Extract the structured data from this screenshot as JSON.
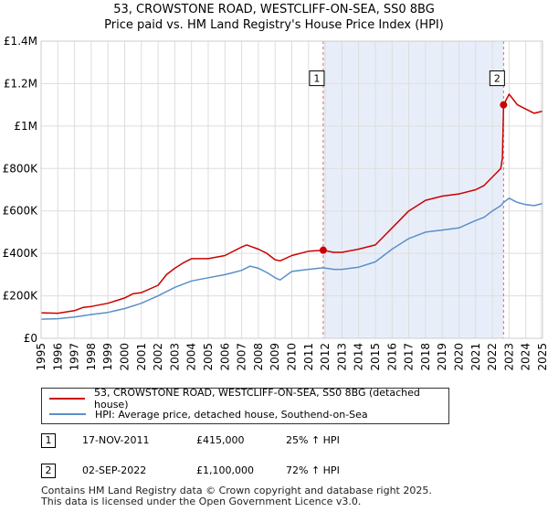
{
  "chart_data": {
    "type": "line",
    "title": "53, CROWSTONE ROAD, WESTCLIFF-ON-SEA, SS0 8BG",
    "subtitle": "Price paid vs. HM Land Registry's House Price Index (HPI)",
    "xlabel": "",
    "ylabel": "",
    "xlim": [
      1995,
      2025
    ],
    "ylim": [
      0,
      1400000
    ],
    "grid": true,
    "ytick_values": [
      0,
      200000,
      400000,
      600000,
      800000,
      1000000,
      1200000,
      1400000
    ],
    "ytick_labels": [
      "£0",
      "£200K",
      "£400K",
      "£600K",
      "£800K",
      "£1M",
      "£1.2M",
      "£1.4M"
    ],
    "xtick_values": [
      1995,
      1996,
      1997,
      1998,
      1999,
      2000,
      2001,
      2002,
      2003,
      2004,
      2005,
      2006,
      2007,
      2008,
      2009,
      2010,
      2011,
      2012,
      2013,
      2014,
      2015,
      2016,
      2017,
      2018,
      2019,
      2020,
      2021,
      2022,
      2023,
      2024,
      2025
    ],
    "xtick_labels": [
      "1995",
      "1996",
      "1997",
      "1998",
      "1999",
      "2000",
      "2001",
      "2002",
      "2003",
      "2004",
      "2005",
      "2006",
      "2007",
      "2008",
      "2009",
      "2010",
      "2011",
      "2012",
      "2013",
      "2014",
      "2015",
      "2016",
      "2017",
      "2018",
      "2019",
      "2020",
      "2021",
      "2022",
      "2023",
      "2024",
      "2025"
    ],
    "shaded_region": [
      2011.88,
      2022.67
    ],
    "series": [
      {
        "name": "53, CROWSTONE ROAD, WESTCLIFF-ON-SEA, SS0 8BG (detached house)",
        "color": "#cc0000",
        "x": [
          1995.0,
          1996.0,
          1997.0,
          1997.5,
          1998.0,
          1999.0,
          2000.0,
          2000.5,
          2001.0,
          2002.0,
          2002.5,
          2003.0,
          2003.5,
          2004.0,
          2005.0,
          2006.0,
          2007.0,
          2007.3,
          2008.0,
          2008.5,
          2009.0,
          2009.3,
          2010.0,
          2011.0,
          2011.88,
          2012.5,
          2013.0,
          2014.0,
          2015.0,
          2016.0,
          2017.0,
          2018.0,
          2019.0,
          2020.0,
          2021.0,
          2021.5,
          2022.0,
          2022.5,
          2022.6,
          2022.67,
          2023.0,
          2023.5,
          2024.0,
          2024.5,
          2025.0
        ],
        "y": [
          120000,
          118000,
          130000,
          145000,
          150000,
          165000,
          190000,
          210000,
          215000,
          250000,
          300000,
          330000,
          355000,
          375000,
          375000,
          390000,
          430000,
          440000,
          420000,
          400000,
          370000,
          365000,
          390000,
          410000,
          415000,
          405000,
          405000,
          420000,
          440000,
          520000,
          600000,
          650000,
          670000,
          680000,
          700000,
          720000,
          760000,
          800000,
          850000,
          1100000,
          1150000,
          1100000,
          1080000,
          1060000,
          1070000
        ]
      },
      {
        "name": "HPI: Average price, detached house, Southend-on-Sea",
        "color": "#5b8fc9",
        "x": [
          1995.0,
          1996.0,
          1997.0,
          1998.0,
          1999.0,
          2000.0,
          2001.0,
          2002.0,
          2003.0,
          2004.0,
          2005.0,
          2006.0,
          2007.0,
          2007.5,
          2008.0,
          2008.5,
          2009.0,
          2009.3,
          2010.0,
          2011.0,
          2011.88,
          2012.5,
          2013.0,
          2014.0,
          2015.0,
          2016.0,
          2017.0,
          2018.0,
          2019.0,
          2020.0,
          2021.0,
          2021.5,
          2022.0,
          2022.5,
          2022.67,
          2023.0,
          2023.5,
          2024.0,
          2024.5,
          2025.0
        ],
        "y": [
          90000,
          92000,
          100000,
          112000,
          122000,
          140000,
          165000,
          200000,
          240000,
          270000,
          285000,
          300000,
          320000,
          340000,
          330000,
          310000,
          285000,
          275000,
          315000,
          325000,
          332000,
          325000,
          325000,
          335000,
          360000,
          420000,
          470000,
          500000,
          510000,
          520000,
          555000,
          570000,
          600000,
          625000,
          640000,
          660000,
          640000,
          630000,
          625000,
          635000
        ]
      }
    ],
    "markers": [
      {
        "label": "1",
        "x": 2011.88,
        "y": 415000
      },
      {
        "label": "2",
        "x": 2022.67,
        "y": 1100000
      }
    ]
  },
  "legend": {
    "series1": "53, CROWSTONE ROAD, WESTCLIFF-ON-SEA, SS0 8BG (detached house)",
    "series2": "HPI: Average price, detached house, Southend-on-Sea"
  },
  "transactions": [
    {
      "num": "1",
      "date": "17-NOV-2011",
      "price": "£415,000",
      "hpi": "25% ↑ HPI"
    },
    {
      "num": "2",
      "date": "02-SEP-2022",
      "price": "£1,100,000",
      "hpi": "72% ↑ HPI"
    }
  ],
  "footer": {
    "line1": "Contains HM Land Registry data © Crown copyright and database right 2025.",
    "line2": "This data is licensed under the Open Government Licence v3.0."
  }
}
